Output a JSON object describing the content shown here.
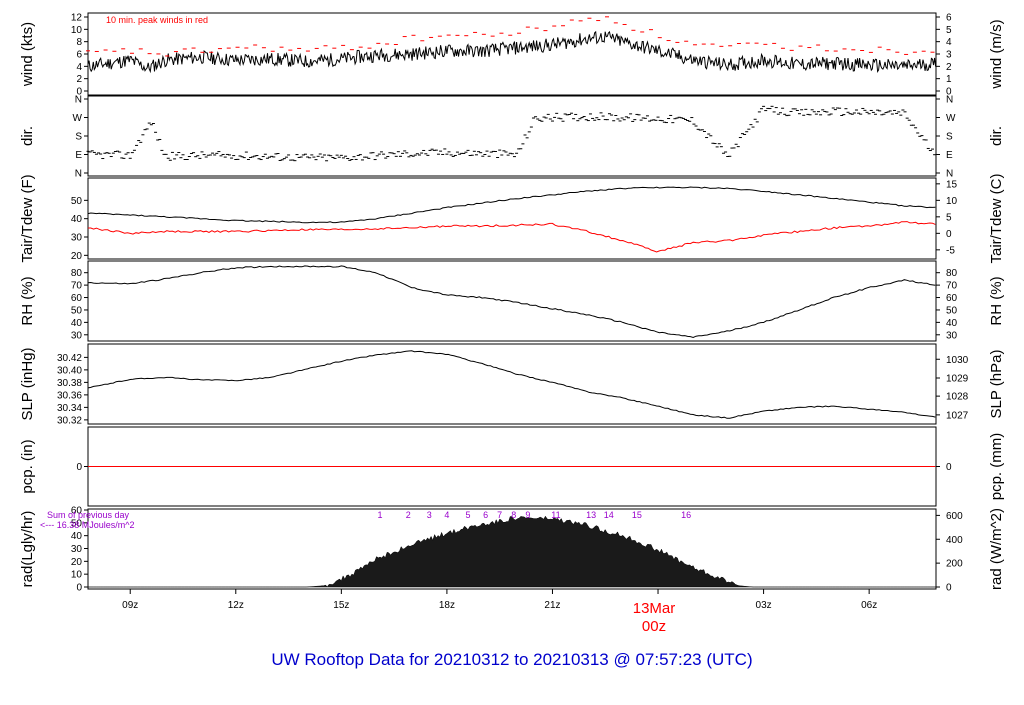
{
  "title": "UW Rooftop Data for 20210312  to  20210313 @ 07:57:23  (UTC)",
  "date_marker": {
    "date": "13Mar",
    "hour": "00z"
  },
  "colors": {
    "primary": "#000000",
    "accent": "#ff0000",
    "solar": "#9900cc",
    "title": "#0000cc"
  },
  "chart_data": {
    "type": "line",
    "x_unit": "UTC hour (relative to 20210312 00z)",
    "x_range": [
      7.8,
      31.9
    ],
    "x_ticks": [
      {
        "h": 9,
        "label": "09z"
      },
      {
        "h": 12,
        "label": "12z"
      },
      {
        "h": 15,
        "label": "15z"
      },
      {
        "h": 18,
        "label": "18z"
      },
      {
        "h": 21,
        "label": "21z"
      },
      {
        "h": 24,
        "label": "00z"
      },
      {
        "h": 27,
        "label": "03z"
      },
      {
        "h": 30,
        "label": "06z"
      }
    ],
    "panels": [
      {
        "key": "wind",
        "ylabel_left": "wind (kts)",
        "ylabel_right": "wind (m/s)",
        "ylim": [
          0,
          12
        ],
        "left_ticks": [
          "0",
          "2",
          "4",
          "6",
          "8",
          "10",
          "12"
        ],
        "right_ticks": [
          "0",
          "1",
          "2",
          "3",
          "4",
          "5",
          "6"
        ],
        "annotation": "10 min. peak winds in red",
        "series": [
          {
            "role": "mean",
            "x": [
              7.8,
              9,
              9.5,
              10,
              11,
              12,
              13,
              14,
              15,
              16,
              17,
              18,
              19,
              20,
              21,
              22,
              22.5,
              23,
              24,
              25,
              26,
              27,
              28,
              29,
              30,
              31,
              31.9
            ],
            "y": [
              4,
              5,
              3.7,
              5,
              5.5,
              5,
              5.2,
              4.8,
              5.2,
              5.8,
              6,
              6.5,
              6.5,
              7,
              7.5,
              8.5,
              8.8,
              8,
              6.5,
              5,
              4.2,
              5,
              4.3,
              4.5,
              4.2,
              4,
              4.5
            ]
          },
          {
            "role": "peak",
            "x": [
              7.8,
              9,
              10,
              11,
              12,
              13,
              14,
              15,
              16,
              17,
              18,
              19,
              20,
              21,
              22,
              22.5,
              23,
              24,
              25,
              26,
              27,
              28,
              29,
              30,
              31,
              31.9
            ],
            "y": [
              6,
              6.5,
              6,
              6.5,
              7,
              7,
              6.5,
              7,
              7.5,
              8.5,
              9,
              9,
              9.5,
              10.5,
              11.5,
              12,
              11,
              9,
              7.5,
              7,
              7.5,
              7,
              7,
              6.8,
              6.5,
              6.5
            ]
          }
        ]
      },
      {
        "key": "dir",
        "ylabel_left": "dir.",
        "ylabel_right": "dir.",
        "ylim": [
          0,
          360
        ],
        "left_ticks": [
          "N",
          "E",
          "S",
          "W",
          "N"
        ],
        "right_ticks": [
          "N",
          "E",
          "S",
          "W",
          "N"
        ],
        "series": [
          {
            "role": "direction_deg",
            "x": [
              7.8,
              9,
              9.6,
              10,
              11,
              12,
              13,
              14,
              15,
              16,
              17,
              18,
              19,
              20,
              20.5,
              21,
              22,
              23,
              24,
              25,
              26,
              27,
              28,
              29,
              30,
              31,
              31.9
            ],
            "y": [
              90,
              85,
              250,
              80,
              85,
              85,
              80,
              75,
              75,
              85,
              95,
              100,
              95,
              90,
              265,
              270,
              275,
              270,
              265,
              255,
              80,
              310,
              290,
              300,
              295,
              290,
              80
            ]
          }
        ]
      },
      {
        "key": "temp",
        "ylabel_left": "Tair/Tdew (F)",
        "ylabel_right": "Tair/Tdew (C)",
        "ylim": [
          18,
          60
        ],
        "left_ticks": [
          "20",
          "30",
          "40",
          "50"
        ],
        "right_ticks": [
          "-5",
          "0",
          "5",
          "10",
          "15"
        ],
        "series": [
          {
            "role": "Tair",
            "x": [
              7.8,
              9,
              10,
              12,
              13,
              14,
              15,
              16,
              17,
              18,
              19,
              20,
              21,
              22,
              23,
              24,
              25,
              26,
              27,
              28,
              29,
              30,
              31,
              31.9
            ],
            "y": [
              43,
              42,
              41,
              39,
              38.5,
              38,
              38,
              40,
              43,
              46,
              48.5,
              51,
              53,
              55,
              56.5,
              57,
              57,
              56.5,
              55,
              53,
              51,
              49,
              47,
              46
            ]
          },
          {
            "role": "Tdew",
            "x": [
              7.8,
              9,
              10,
              12,
              13,
              14,
              15,
              16,
              17,
              18,
              19,
              20,
              21,
              22,
              23,
              23.5,
              24,
              25,
              26,
              27,
              28,
              29,
              30,
              31,
              31.9
            ],
            "y": [
              35,
              32,
              33,
              33,
              33.5,
              34,
              34,
              34.5,
              35,
              36,
              36,
              36.5,
              37,
              33,
              28,
              25,
              22,
              27,
              28,
              31,
              33,
              35,
              36,
              38,
              37
            ]
          }
        ]
      },
      {
        "key": "rh",
        "ylabel_left": "RH (%)",
        "ylabel_right": "RH (%)",
        "ylim": [
          25,
          87
        ],
        "left_ticks": [
          "30",
          "40",
          "50",
          "60",
          "70",
          "80"
        ],
        "right_ticks": [
          "30",
          "40",
          "50",
          "60",
          "70",
          "80"
        ],
        "series": [
          {
            "role": "RH",
            "x": [
              7.8,
              9,
              10,
              11,
              12,
              13,
              14,
              15,
              16,
              17,
              18,
              19,
              20,
              21,
              22,
              23,
              24,
              25,
              26,
              27,
              28,
              29,
              30,
              31,
              31.9
            ],
            "y": [
              72,
              71,
              75,
              80,
              84,
              85,
              85,
              85,
              80,
              68,
              62,
              60,
              56,
              51,
              46,
              40,
              32,
              28,
              33,
              40,
              50,
              60,
              68,
              74,
              70
            ]
          }
        ]
      },
      {
        "key": "slp",
        "ylabel_left": "SLP (inHg)",
        "ylabel_right": "SLP (hPa)",
        "ylim": [
          30.315,
          30.435
        ],
        "left_ticks": [
          "30.32",
          "30.34",
          "30.36",
          "30.38",
          "30.40",
          "30.42"
        ],
        "right_ticks": [
          "1027",
          "1028",
          "1029",
          "1030"
        ],
        "series": [
          {
            "role": "SLP",
            "x": [
              7.8,
              9,
              10,
              11,
              12,
              13,
              14,
              15,
              16,
              17,
              18,
              19,
              20,
              21,
              22,
              23,
              24,
              25,
              26,
              27,
              28,
              29,
              30,
              31,
              31.9
            ],
            "y": [
              30.371,
              30.385,
              30.388,
              30.384,
              30.383,
              30.388,
              30.401,
              30.414,
              30.424,
              30.43,
              30.425,
              30.41,
              30.393,
              30.38,
              30.365,
              30.355,
              30.342,
              30.328,
              30.323,
              30.334,
              30.34,
              30.342,
              30.337,
              30.332,
              30.324
            ]
          }
        ]
      },
      {
        "key": "pcp",
        "ylabel_left": "pcp. (in)",
        "ylabel_right": "pcp. (mm)",
        "ylim": [
          -1,
          1
        ],
        "left_ticks": [
          "0"
        ],
        "right_ticks": [
          "0"
        ],
        "series": [
          {
            "role": "precip",
            "x": [
              7.8,
              31.9
            ],
            "y": [
              0,
              0
            ]
          }
        ]
      },
      {
        "key": "rad",
        "ylabel_left": "rad(Lgly/hr)",
        "ylabel_right": "rad (W/m^2)",
        "ylim": [
          0,
          60
        ],
        "left_ticks": [
          "0",
          "10",
          "20",
          "30",
          "40",
          "50",
          "60"
        ],
        "right_ticks": [
          "0",
          "200",
          "400",
          "600"
        ],
        "annotation_lines": [
          "Sum of previous day",
          "<--- 16.38 MJoules/m^2"
        ],
        "hour_markers": [
          "1",
          "2",
          "3",
          "4",
          "5",
          "6",
          "7",
          "8",
          "9",
          "11",
          "13",
          "14",
          "15",
          "16"
        ],
        "series": [
          {
            "role": "radiation",
            "x": [
              7.8,
              14,
              14.5,
              15,
              15.5,
              16,
              17,
              18,
              19,
              20,
              21,
              22,
              23,
              24,
              25,
              26,
              26.3,
              26.7,
              31.9
            ],
            "y": [
              0,
              0,
              1,
              6,
              13,
              22,
              33,
              42,
              49,
              54,
              53,
              48,
              40,
              29,
              15,
              4,
              1,
              0,
              0
            ]
          }
        ]
      }
    ]
  }
}
